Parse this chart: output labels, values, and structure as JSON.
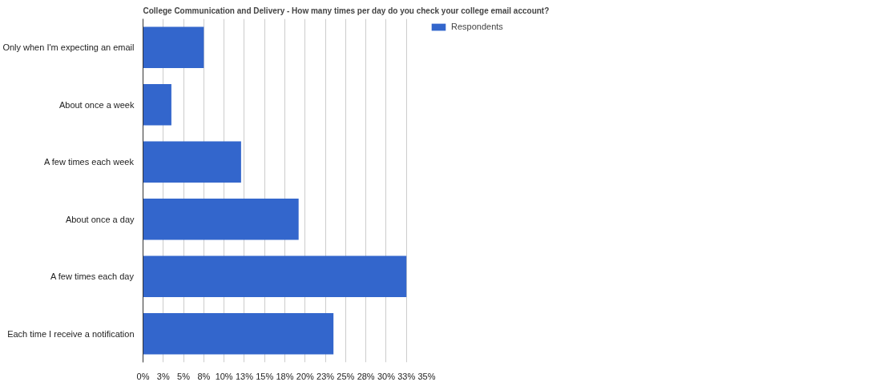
{
  "chart_data": {
    "type": "bar",
    "orientation": "horizontal",
    "title": "College Communication and Delivery - How many times per day do you check your college email account?",
    "categories": [
      "Only when I'm expecting an email",
      "About once a week",
      "A few times each week",
      "About once a day",
      "A few times each day",
      "Each time I receive a notification"
    ],
    "series": [
      {
        "name": "Respondents",
        "color": "#3366cc",
        "values": [
          7.5,
          3.5,
          12.1,
          19.2,
          32.5,
          23.5
        ]
      }
    ],
    "xlim": [
      0,
      35
    ],
    "xticks": [
      {
        "value": 0,
        "label": "0%"
      },
      {
        "value": 2.5,
        "label": "3%"
      },
      {
        "value": 5,
        "label": "5%"
      },
      {
        "value": 7.5,
        "label": "8%"
      },
      {
        "value": 10,
        "label": "10%"
      },
      {
        "value": 12.5,
        "label": "13%"
      },
      {
        "value": 15,
        "label": "15%"
      },
      {
        "value": 17.5,
        "label": "18%"
      },
      {
        "value": 20,
        "label": "20%"
      },
      {
        "value": 22.5,
        "label": "23%"
      },
      {
        "value": 25,
        "label": "25%"
      },
      {
        "value": 27.5,
        "label": "28%"
      },
      {
        "value": 30,
        "label": "30%"
      },
      {
        "value": 32.5,
        "label": "33%"
      },
      {
        "value": 35,
        "label": "35%"
      }
    ],
    "grid": "x",
    "legend": "top right"
  }
}
